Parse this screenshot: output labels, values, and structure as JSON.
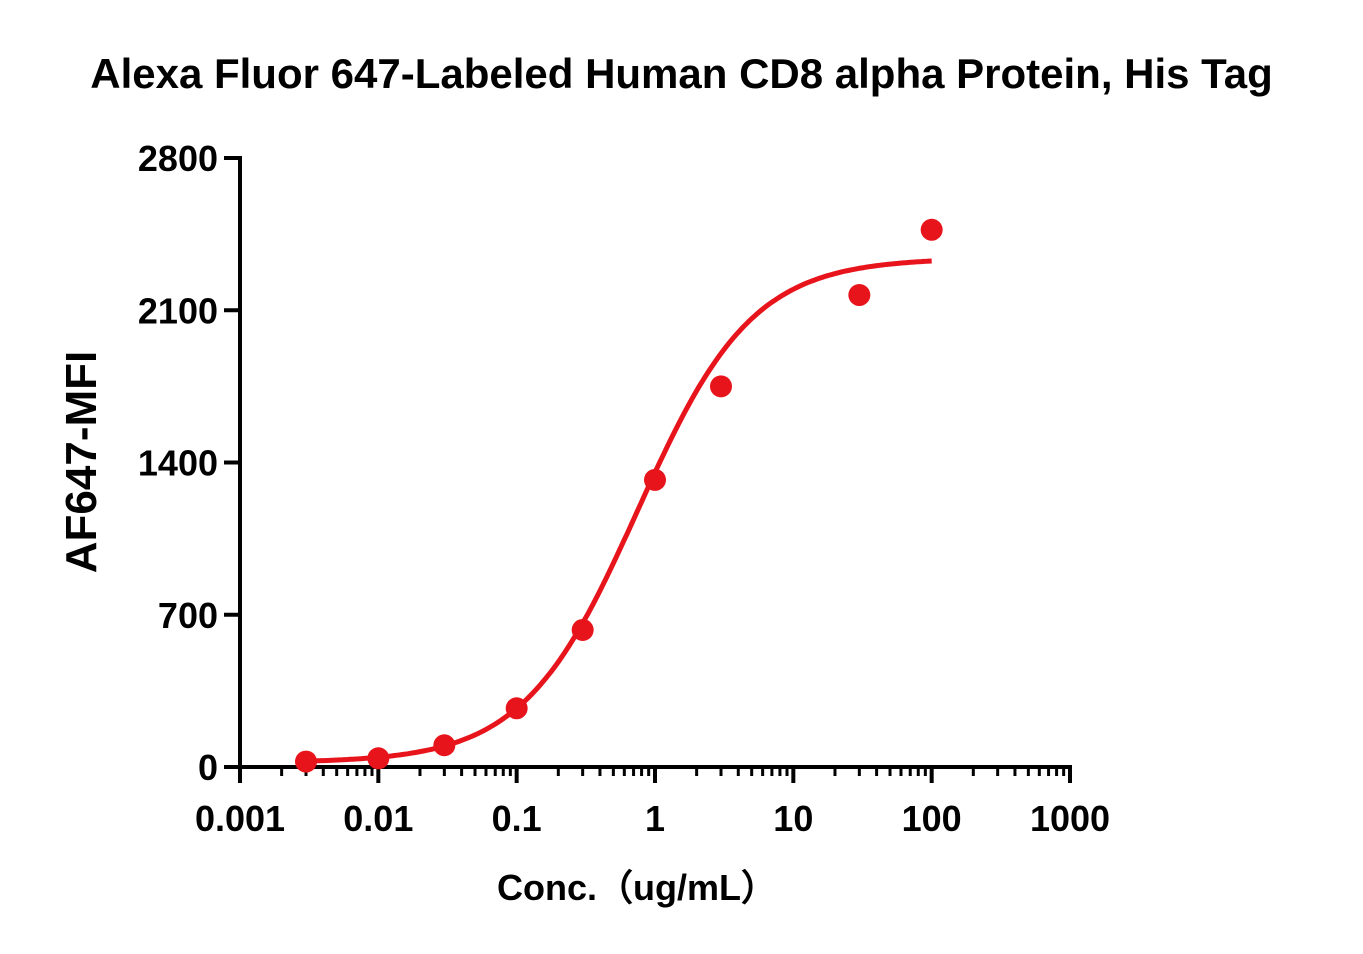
{
  "chart_data": {
    "type": "scatter",
    "title": "Alexa Fluor 647-Labeled Human CD8 alpha Protein, His Tag",
    "xlabel": "Conc.（ug/mL）",
    "ylabel": "AF647-MFI",
    "x_scale": "log10",
    "xlim": [
      0.001,
      1000
    ],
    "ylim": [
      0,
      2800
    ],
    "x_ticks": [
      0.001,
      0.01,
      0.1,
      1,
      10,
      100,
      1000
    ],
    "x_tick_labels": [
      "0.001",
      "0.01",
      "0.1",
      "1",
      "10",
      "100",
      "1000"
    ],
    "y_ticks": [
      0,
      700,
      1400,
      2100,
      2800
    ],
    "y_tick_labels": [
      "0",
      "700",
      "1400",
      "2100",
      "2800"
    ],
    "series": [
      {
        "name": "AF647-MFI",
        "color": "#e8141c",
        "x": [
          0.003,
          0.01,
          0.03,
          0.1,
          0.3,
          1,
          3,
          30,
          100
        ],
        "y": [
          25,
          40,
          100,
          270,
          630,
          1320,
          1750,
          2170,
          2470
        ]
      }
    ],
    "fit": {
      "model": "4PL",
      "bottom": 20,
      "top": 2340,
      "ec50": 0.75,
      "hill": 1.05,
      "x_range": [
        0.003,
        100
      ]
    },
    "grid": false,
    "legend": "none"
  }
}
